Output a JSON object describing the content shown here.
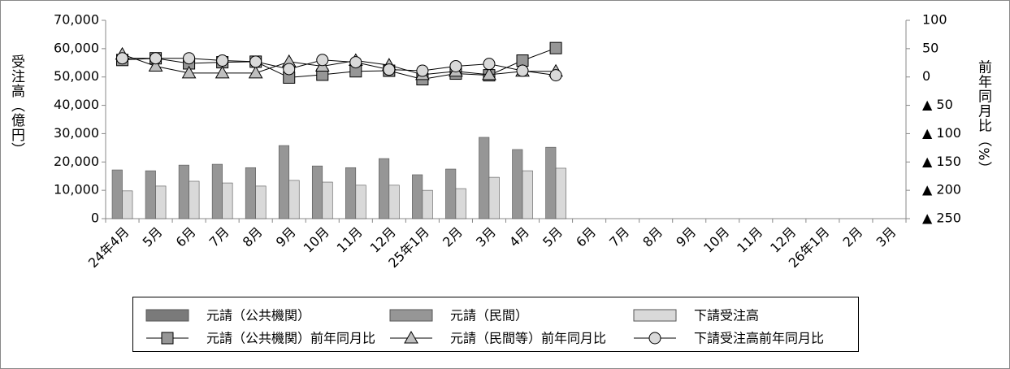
{
  "chart_data": {
    "type": "combo",
    "y_label": "受注高（億円）",
    "y2_label": "前年同月比（%）",
    "categories": [
      "24年4月",
      "5月",
      "6月",
      "7月",
      "8月",
      "9月",
      "10月",
      "11月",
      "12月",
      "25年1月",
      "2月",
      "3月",
      "4月",
      "5月",
      "6月",
      "7月",
      "8月",
      "9月",
      "10月",
      "11月",
      "12月",
      "26年1月",
      "2月",
      "3月"
    ],
    "ylim": [
      0,
      70000
    ],
    "yticks": [
      0,
      {
        "value": 10000,
        "label": "10,000"
      },
      {
        "value": 20000,
        "label": "20,000"
      },
      {
        "value": 30000,
        "label": "30,000"
      },
      {
        "value": 40000,
        "label": "40,000"
      },
      {
        "value": 50000,
        "label": "50,000"
      },
      {
        "value": 60000,
        "label": "60,000"
      },
      {
        "value": 70000,
        "label": "70,000"
      }
    ],
    "y2lim": [
      -250,
      100
    ],
    "y2ticks": [
      {
        "value": -250,
        "label": "▲ 250"
      },
      {
        "value": -200,
        "label": "▲ 200"
      },
      {
        "value": -150,
        "label": "▲ 150"
      },
      {
        "value": -100,
        "label": "▲ 100"
      },
      {
        "value": -50,
        "label": "▲ 50"
      },
      0,
      50,
      100
    ],
    "series": [
      {
        "name": "元請（公共機関）",
        "type": "bar",
        "color": "#7a7a7a",
        "values": [
          null,
          null,
          null,
          null,
          null,
          null,
          null,
          null,
          null,
          null,
          null,
          null,
          null,
          null,
          null,
          null,
          null,
          null,
          null,
          null,
          null,
          null,
          null,
          null
        ]
      },
      {
        "name": "元請（民間）",
        "type": "bar",
        "color": "#969696",
        "values": [
          17200,
          16900,
          18900,
          19200,
          18000,
          25800,
          18600,
          18000,
          21200,
          15500,
          17500,
          28700,
          24400,
          25200,
          null,
          null,
          null,
          null,
          null,
          null,
          null,
          null,
          null,
          null
        ]
      },
      {
        "name": "下請受注高",
        "type": "bar",
        "color": "#d9d9d9",
        "values": [
          9800,
          11500,
          13200,
          12600,
          11500,
          13500,
          12900,
          11800,
          11800,
          10000,
          10600,
          14600,
          16900,
          17800,
          null,
          null,
          null,
          null,
          null,
          null,
          null,
          null,
          null,
          null
        ]
      },
      {
        "name": "元請（公共機関）前年同月比",
        "type": "line",
        "marker": "square",
        "axis": "y2",
        "color": "#969696",
        "values": [
          30,
          33,
          24,
          26,
          27,
          -1,
          4,
          10,
          11,
          -4,
          6,
          3,
          29,
          51,
          null,
          null,
          null,
          null,
          null,
          null,
          null,
          null,
          null,
          null
        ]
      },
      {
        "name": "元請（民間等）前年同月比",
        "type": "line",
        "marker": "triangle",
        "axis": "y2",
        "color": "#bfbfbf",
        "values": [
          40,
          19,
          7,
          7,
          7,
          27,
          19,
          29,
          21,
          4,
          10,
          4,
          10,
          10,
          null,
          null,
          null,
          null,
          null,
          null,
          null,
          null,
          null,
          null
        ]
      },
      {
        "name": "下請受注高前年同月比",
        "type": "line",
        "marker": "circle",
        "axis": "y2",
        "color": "#d9d9d9",
        "values": [
          33,
          33,
          33,
          29,
          27,
          14,
          30,
          26,
          13,
          11,
          19,
          23,
          11,
          3,
          null,
          null,
          null,
          null,
          null,
          null,
          null,
          null,
          null,
          null
        ]
      }
    ]
  }
}
